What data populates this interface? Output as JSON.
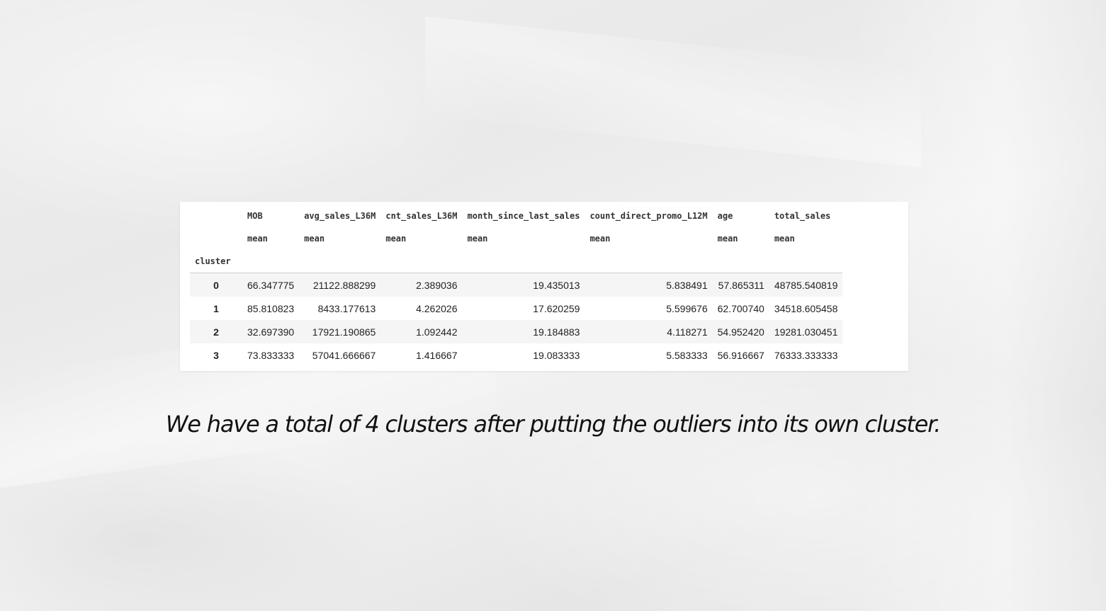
{
  "table": {
    "columns": [
      {
        "name": "MOB",
        "stat": "mean"
      },
      {
        "name": "avg_sales_L36M",
        "stat": "mean"
      },
      {
        "name": "cnt_sales_L36M",
        "stat": "mean"
      },
      {
        "name": "month_since_last_sales",
        "stat": "mean"
      },
      {
        "name": "count_direct_promo_L12M",
        "stat": "mean"
      },
      {
        "name": "age",
        "stat": "mean"
      },
      {
        "name": "total_sales",
        "stat": "mean"
      }
    ],
    "index_name": "cluster",
    "rows": [
      {
        "cluster": "0",
        "values": [
          "66.347775",
          "21122.888299",
          "2.389036",
          "19.435013",
          "5.838491",
          "57.865311",
          "48785.540819"
        ]
      },
      {
        "cluster": "1",
        "values": [
          "85.810823",
          "8433.177613",
          "4.262026",
          "17.620259",
          "5.599676",
          "62.700740",
          "34518.605458"
        ]
      },
      {
        "cluster": "2",
        "values": [
          "32.697390",
          "17921.190865",
          "1.092442",
          "19.184883",
          "4.118271",
          "54.952420",
          "19281.030451"
        ]
      },
      {
        "cluster": "3",
        "values": [
          "73.833333",
          "57041.666667",
          "1.416667",
          "19.083333",
          "5.583333",
          "56.916667",
          "76333.333333"
        ]
      }
    ]
  },
  "caption": "We have a total of 4 clusters after putting the outliers into its own cluster."
}
